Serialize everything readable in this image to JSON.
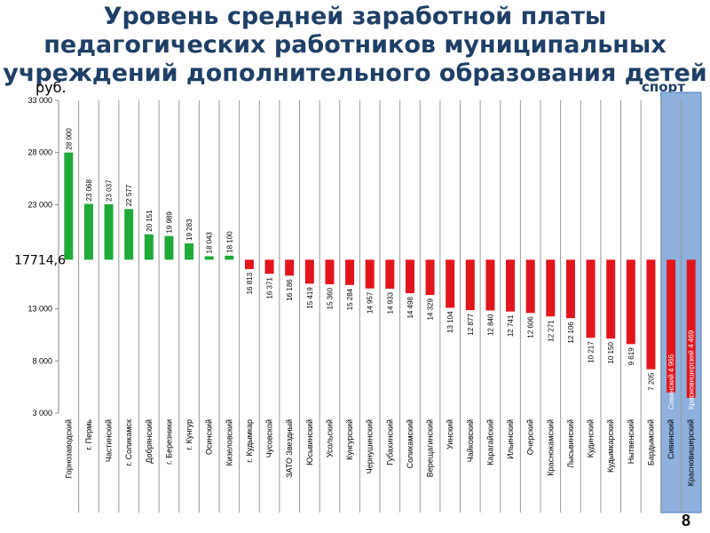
{
  "title_lines": [
    "Уровень средней заработной платы",
    "педагогических работников муниципальных",
    "учреждений дополнительного образования детей"
  ],
  "unit_label": "руб.",
  "sport_label": "спорт",
  "page_number": "8",
  "reference_label": "17714,6",
  "colors": {
    "above": "#1faa3a",
    "below": "#e3151c",
    "highlight": "#8db0dd",
    "title": "#1f3f66"
  },
  "chart_data": {
    "type": "bar",
    "title": "Уровень средней заработной платы педагогических работников муниципальных учреждений дополнительного образования детей",
    "ylabel": "руб.",
    "ylim": [
      3000,
      33000
    ],
    "yticks": [
      "3 000",
      "8 000",
      "13 000",
      "17714,6",
      "23 000",
      "28 000",
      "33 000"
    ],
    "reference_value": 17714.6,
    "categories": [
      "Горнозаводский",
      "г. Пермь",
      "Частинский",
      "г. Соликамск",
      "Добрянский",
      "г. Березники",
      "г. Кунгур",
      "Осинский",
      "Кизеловский",
      "г. Кудымкар",
      "Чусовской",
      "ЗАТО Звездный",
      "Юсьвинский",
      "Усольский",
      "Кунгурский",
      "Чернушинский",
      "Губахинский",
      "Соликамский",
      "Верещагинский",
      "Уинский",
      "Чайковский",
      "Карагайский",
      "Ильинский",
      "Очерский",
      "Краснокамский",
      "Лысьвинский",
      "Кудинский",
      "Кудымкарский",
      "Нытвенский",
      "Бардымский",
      "Сивинский",
      "Красновишерский"
    ],
    "values": [
      28000,
      23068,
      23037,
      22577,
      20151,
      19989,
      19283,
      18043,
      18100,
      16813,
      16371,
      16186,
      15419,
      15360,
      15284,
      14957,
      14933,
      14498,
      14329,
      13104,
      12877,
      12840,
      12741,
      12606,
      12271,
      12106,
      10217,
      10150,
      9619,
      7205,
      4966,
      4469
    ],
    "value_labels": [
      "28 000",
      "23 068",
      "23 037",
      "22 577",
      "20 151",
      "19 989",
      "19 283",
      "18 043",
      "18 100",
      "16 813",
      "16 371",
      "16 186",
      "15 419",
      "15 360",
      "15 284",
      "14 957",
      "14 933",
      "14 498",
      "14 329",
      "13 104",
      "12 877",
      "12 840",
      "12 741",
      "12 606",
      "12 271",
      "12 106",
      "10 217",
      "10 150",
      "9 619",
      "7 205",
      "Сивинский 4 966",
      "Красновишерский 4 469"
    ],
    "highlighted_categories": [
      "Сивинский",
      "Красновишерский"
    ],
    "grid": false
  }
}
